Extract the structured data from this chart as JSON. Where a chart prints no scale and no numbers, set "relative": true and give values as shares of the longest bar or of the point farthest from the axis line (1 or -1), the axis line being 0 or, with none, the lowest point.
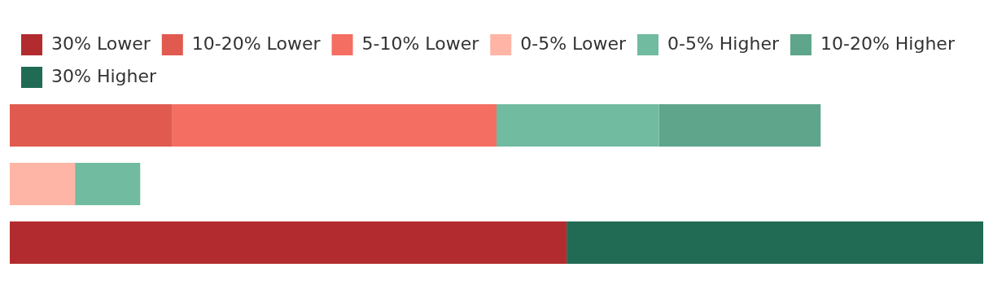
{
  "chart_data": {
    "type": "bar",
    "orientation": "horizontal",
    "stacked": true,
    "relative": true,
    "legend": "top left",
    "categories": [
      null,
      null,
      null
    ],
    "series": [
      {
        "name": "30% Lower",
        "color": "#b22c2f",
        "values": [
          null,
          null,
          0.572
        ]
      },
      {
        "name": "10-20% Lower",
        "color": "#e05a4f",
        "values": [
          0.167,
          null,
          null
        ]
      },
      {
        "name": "5-10% Lower",
        "color": "#f46e62",
        "values": [
          0.333,
          null,
          null
        ]
      },
      {
        "name": "0-5% Lower",
        "color": "#feb5a6",
        "values": [
          null,
          0.067,
          null
        ]
      },
      {
        "name": "0-5% Higher",
        "color": "#71bba0",
        "values": [
          0.167,
          0.067,
          null
        ]
      },
      {
        "name": "10-20% Higher",
        "color": "#5ea58c",
        "values": [
          0.166,
          null,
          null
        ]
      },
      {
        "name": "30% Higher",
        "color": "#216b55",
        "values": [
          null,
          null,
          0.428
        ]
      }
    ]
  }
}
